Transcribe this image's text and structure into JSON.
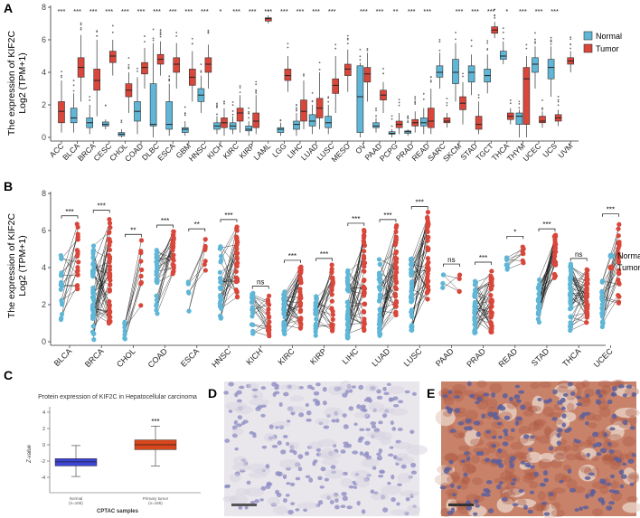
{
  "figure": {
    "panel_labels": [
      "A",
      "B",
      "C",
      "D",
      "E"
    ],
    "colors": {
      "normal": "#5fb6d6",
      "tumor": "#d9463a",
      "cptac_normal": "#3c45d4",
      "cptac_tumor": "#d8461b"
    }
  },
  "panel_a": {
    "ylabel_line1": "The expression of KIF2C",
    "ylabel_line2": "Log2 (TPM+1)",
    "legend": {
      "normal": "Normal",
      "tumor": "Tumor"
    },
    "y_ticks": [
      "0",
      "2",
      "4",
      "6",
      "8"
    ]
  },
  "panel_b": {
    "ylabel_line1": "The expression of KIF2C",
    "ylabel_line2": "Log2 (TPM+1)",
    "legend": {
      "normal": "Normal",
      "tumor": "Tumor"
    },
    "y_ticks": [
      "0",
      "2",
      "4",
      "6",
      "8"
    ]
  },
  "panel_c": {
    "title": "Protein expression of KIF2C in Hepatocellular carcinoma",
    "ylabel": "Z-value",
    "xlabel": "CPTAC samples",
    "group1_name": "Normal",
    "group1_n": "(n=165)",
    "group2_name": "Primary tumor",
    "group2_n": "(n=165)",
    "sig": "***",
    "y_ticks": [
      "4",
      "2",
      "0",
      "-2",
      "-4"
    ]
  },
  "chart_data": [
    {
      "id": "A",
      "type": "box",
      "ylabel": "The expression of KIF2C Log2 (TPM+1)",
      "ylim": [
        0,
        8
      ],
      "series": [
        {
          "name": "Normal",
          "color": "#5fb6d6"
        },
        {
          "name": "Tumor",
          "color": "#d9463a"
        }
      ],
      "groups": [
        {
          "cancer": "ACC",
          "sig": "***",
          "normal": null,
          "tumor": [
            0.3,
            0.9,
            1.6,
            2.2,
            3.5
          ]
        },
        {
          "cancer": "BLCA",
          "sig": "***",
          "normal": [
            0.3,
            0.9,
            1.2,
            1.8,
            2.7
          ],
          "tumor": [
            2.2,
            3.7,
            4.3,
            4.9,
            6.3
          ]
        },
        {
          "cancer": "BRCA",
          "sig": "***",
          "normal": [
            0.2,
            0.6,
            0.9,
            1.2,
            2.0
          ],
          "tumor": [
            1.3,
            2.9,
            3.5,
            4.2,
            6.0
          ]
        },
        {
          "cancer": "CESC",
          "sig": "***",
          "normal": [
            0.5,
            0.7,
            0.8,
            0.95,
            1.1
          ],
          "tumor": [
            3.8,
            4.6,
            5.0,
            5.3,
            6.0
          ]
        },
        {
          "cancer": "CHOL",
          "sig": "***",
          "normal": [
            0.0,
            0.1,
            0.2,
            0.3,
            0.5
          ],
          "tumor": [
            1.5,
            2.5,
            2.9,
            3.3,
            4.0
          ]
        },
        {
          "cancer": "COAD",
          "sig": "***",
          "normal": [
            0.2,
            1.0,
            1.6,
            2.2,
            3.7
          ],
          "tumor": [
            3.0,
            3.9,
            4.3,
            4.6,
            5.5
          ]
        },
        {
          "cancer": "DLBC",
          "sig": "***",
          "normal": [
            0.0,
            0.7,
            0.8,
            3.3,
            5.8
          ],
          "tumor": [
            3.8,
            4.5,
            4.8,
            5.1,
            5.9
          ]
        },
        {
          "cancer": "ESCA",
          "sig": "***",
          "normal": [
            0.1,
            0.5,
            0.8,
            2.2,
            3.3
          ],
          "tumor": [
            3.0,
            4.0,
            4.5,
            4.9,
            5.8
          ]
        },
        {
          "cancer": "GBM",
          "sig": "***",
          "normal": [
            0.1,
            0.3,
            0.5,
            0.6,
            1.0
          ],
          "tumor": [
            2.2,
            3.2,
            3.7,
            4.2,
            5.3
          ]
        },
        {
          "cancer": "HNSC",
          "sig": "***",
          "normal": [
            1.5,
            2.2,
            2.6,
            3.0,
            3.8
          ],
          "tumor": [
            3.0,
            4.0,
            4.5,
            4.9,
            5.7
          ]
        },
        {
          "cancer": "KICH",
          "sig": "*",
          "normal": [
            0.2,
            0.5,
            0.7,
            0.9,
            1.3
          ],
          "tumor": [
            0.1,
            0.6,
            0.9,
            1.2,
            1.8
          ]
        },
        {
          "cancer": "KIRC",
          "sig": "***",
          "normal": [
            0.2,
            0.5,
            0.7,
            0.9,
            1.3
          ],
          "tumor": [
            0.3,
            1.0,
            1.5,
            1.8,
            2.6
          ]
        },
        {
          "cancer": "KIRP",
          "sig": "***",
          "normal": [
            0.1,
            0.4,
            0.5,
            0.7,
            1.0
          ],
          "tumor": [
            0.2,
            0.6,
            1.0,
            1.5,
            2.6
          ]
        },
        {
          "cancer": "LAML",
          "sig": "***",
          "normal": null,
          "tumor": [
            7.0,
            7.15,
            7.3,
            7.35,
            7.5
          ]
        },
        {
          "cancer": "LGG",
          "sig": "***",
          "normal": [
            0.1,
            0.3,
            0.5,
            0.6,
            0.9
          ],
          "tumor": [
            2.8,
            3.5,
            3.8,
            4.2,
            5.0
          ]
        },
        {
          "cancer": "LIHC",
          "sig": "***",
          "normal": [
            0.1,
            0.5,
            0.8,
            1.0,
            1.5
          ],
          "tumor": [
            0.5,
            1.0,
            1.6,
            2.3,
            3.5
          ]
        },
        {
          "cancer": "LUAD",
          "sig": "***",
          "normal": [
            0.2,
            0.7,
            1.0,
            1.4,
            2.0
          ],
          "tumor": [
            0.5,
            1.2,
            1.8,
            2.4,
            4.0
          ]
        },
        {
          "cancer": "LUSC",
          "sig": "***",
          "normal": [
            0.2,
            0.6,
            0.9,
            1.3,
            2.0
          ],
          "tumor": [
            1.5,
            2.7,
            3.2,
            3.6,
            5.0
          ]
        },
        {
          "cancer": "MESO",
          "sig": "",
          "normal": null,
          "tumor": [
            2.8,
            3.8,
            4.2,
            4.5,
            5.4
          ]
        },
        {
          "cancer": "OV",
          "sig": "***",
          "normal": [
            0.0,
            0.3,
            2.5,
            4.4,
            4.6
          ],
          "tumor": [
            2.2,
            3.4,
            3.9,
            4.3,
            5.2
          ]
        },
        {
          "cancer": "PAAD",
          "sig": "***",
          "normal": [
            0.3,
            0.6,
            0.7,
            0.9,
            1.2
          ],
          "tumor": [
            1.5,
            2.3,
            2.6,
            2.9,
            3.4
          ]
        },
        {
          "cancer": "PCPG",
          "sig": "**",
          "normal": [
            0.0,
            0.2,
            0.25,
            0.35,
            0.5
          ],
          "tumor": [
            0.2,
            0.6,
            0.8,
            1.0,
            1.5
          ]
        },
        {
          "cancer": "PRAD",
          "sig": "***",
          "normal": [
            0.1,
            0.25,
            0.35,
            0.4,
            0.5
          ],
          "tumor": [
            0.3,
            0.7,
            0.9,
            1.1,
            1.6
          ]
        },
        {
          "cancer": "READ",
          "sig": "***",
          "normal": [
            0.2,
            0.7,
            0.9,
            1.2,
            1.8
          ],
          "tumor": [
            0.2,
            0.6,
            1.0,
            1.8,
            3.0
          ]
        },
        {
          "cancer": "SARC",
          "sig": "",
          "normal": [
            3.0,
            3.7,
            4.0,
            4.4,
            5.2
          ],
          "tumor": [
            0.6,
            0.9,
            1.0,
            1.2,
            1.5
          ]
        },
        {
          "cancer": "SKCM",
          "sig": "***",
          "normal": [
            2.2,
            3.3,
            4.0,
            4.8,
            5.8
          ],
          "tumor": [
            0.8,
            1.7,
            2.1,
            2.5,
            3.4
          ]
        },
        {
          "cancer": "STAD",
          "sig": "***",
          "normal": [
            2.6,
            3.4,
            4.0,
            4.4,
            5.1
          ],
          "tumor": [
            0.2,
            0.5,
            0.8,
            1.3,
            2.2
          ]
        },
        {
          "cancer": "TGCT",
          "sig": "***",
          "normal": [
            2.7,
            3.4,
            3.8,
            4.2,
            5.1
          ],
          "tumor": [
            6.1,
            6.4,
            6.6,
            6.8,
            7.1
          ]
        },
        {
          "cancer": "THCA",
          "sig": "*",
          "normal": [
            4.5,
            4.8,
            5.0,
            5.3,
            5.9
          ],
          "tumor": [
            0.8,
            1.1,
            1.3,
            1.5,
            1.8
          ]
        },
        {
          "cancer": "THYM",
          "sig": "***",
          "normal": [
            0.0,
            0.8,
            1.3,
            1.5,
            1.7
          ],
          "tumor": [
            0.0,
            0.8,
            3.6,
            4.3,
            5.0
          ]
        },
        {
          "cancer": "UCEC",
          "sig": "***",
          "normal": [
            3.0,
            4.0,
            4.5,
            4.9,
            5.6
          ],
          "tumor": [
            0.6,
            0.9,
            1.0,
            1.3,
            1.6
          ]
        },
        {
          "cancer": "UCS",
          "sig": "***",
          "normal": [
            2.5,
            3.6,
            4.3,
            4.8,
            5.6
          ],
          "tumor": [
            0.7,
            1.0,
            1.2,
            1.4,
            1.7
          ]
        },
        {
          "cancer": "UVM",
          "sig": "",
          "normal": null,
          "tumor": [
            4.0,
            4.5,
            4.7,
            4.9,
            5.3
          ]
        }
      ]
    },
    {
      "id": "B",
      "type": "paired-scatter",
      "ylabel": "The expression of KIF2C Log2 (TPM+1)",
      "ylim": [
        0,
        8
      ],
      "pairs": [
        {
          "cancer": "BLCA",
          "sig": "***",
          "n": 19,
          "normal": [
            0.6,
            4.8
          ],
          "tumor": [
            2.5,
            6.5
          ]
        },
        {
          "cancer": "BRCA",
          "sig": "***",
          "n": 45,
          "normal": [
            0.1,
            5.2
          ],
          "tumor": [
            1.0,
            6.8
          ]
        },
        {
          "cancer": "CHOL",
          "sig": "**",
          "n": 9,
          "normal": [
            0.0,
            1.3
          ],
          "tumor": [
            1.8,
            5.5
          ]
        },
        {
          "cancer": "COAD",
          "sig": "***",
          "n": 26,
          "normal": [
            1.5,
            5.0
          ],
          "tumor": [
            3.5,
            6.0
          ]
        },
        {
          "cancer": "ESCA",
          "sig": "**",
          "n": 7,
          "normal": [
            0.8,
            3.3
          ],
          "tumor": [
            3.8,
            5.8
          ]
        },
        {
          "cancer": "HNSC",
          "sig": "***",
          "n": 30,
          "normal": [
            1.2,
            5.3
          ],
          "tumor": [
            2.3,
            6.3
          ]
        },
        {
          "cancer": "KICH",
          "sig": "ns",
          "n": 20,
          "normal": [
            0.4,
            2.7
          ],
          "tumor": [
            0.3,
            2.5
          ]
        },
        {
          "cancer": "KIRC",
          "sig": "***",
          "n": 40,
          "normal": [
            0.4,
            2.8
          ],
          "tumor": [
            0.7,
            4.1
          ]
        },
        {
          "cancer": "KIRP",
          "sig": "***",
          "n": 26,
          "normal": [
            0.3,
            2.5
          ],
          "tumor": [
            0.5,
            4.2
          ]
        },
        {
          "cancer": "LIHC",
          "sig": "***",
          "n": 40,
          "normal": [
            0.2,
            4.0
          ],
          "tumor": [
            0.6,
            6.1
          ]
        },
        {
          "cancer": "LUAD",
          "sig": "***",
          "n": 40,
          "normal": [
            0.3,
            4.5
          ],
          "tumor": [
            1.3,
            6.3
          ]
        },
        {
          "cancer": "LUSC",
          "sig": "***",
          "n": 40,
          "normal": [
            0.5,
            4.7
          ],
          "tumor": [
            2.2,
            7.0
          ]
        },
        {
          "cancer": "PAAD",
          "sig": "ns",
          "n": 4,
          "normal": [
            2.9,
            3.9
          ],
          "tumor": [
            2.4,
            3.9
          ]
        },
        {
          "cancer": "PRAD",
          "sig": "***",
          "n": 40,
          "normal": [
            0.4,
            3.3
          ],
          "tumor": [
            0.5,
            4.0
          ]
        },
        {
          "cancer": "READ",
          "sig": "*",
          "n": 7,
          "normal": [
            3.9,
            4.6
          ],
          "tumor": [
            4.0,
            5.4
          ]
        },
        {
          "cancer": "STAD",
          "sig": "***",
          "n": 27,
          "normal": [
            1.0,
            3.4
          ],
          "tumor": [
            3.3,
            5.8
          ]
        },
        {
          "cancer": "THCA",
          "sig": "ns",
          "n": 45,
          "normal": [
            0.6,
            4.2
          ],
          "tumor": [
            1.0,
            3.9
          ]
        },
        {
          "cancer": "UCEC",
          "sig": "***",
          "n": 22,
          "normal": [
            0.8,
            3.4
          ],
          "tumor": [
            2.0,
            6.6
          ]
        }
      ]
    },
    {
      "id": "C",
      "type": "box",
      "title": "Protein expression of KIF2C in Hepatocellular carcinoma",
      "ylabel": "Z-value",
      "xlabel": "CPTAC samples",
      "ylim": [
        -5,
        5
      ],
      "groups": [
        {
          "name": "Normal",
          "n": 165,
          "stats": [
            -3.9,
            -2.6,
            -2.1,
            -1.7,
            -0.1
          ]
        },
        {
          "name": "Primary tumor",
          "n": 165,
          "stats": [
            -2.6,
            -0.6,
            0.0,
            0.6,
            2.3
          ]
        }
      ]
    }
  ]
}
